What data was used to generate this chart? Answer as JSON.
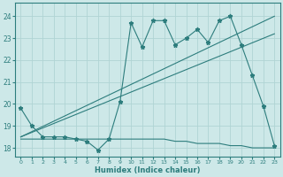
{
  "bg_color": "#cde8e8",
  "grid_color": "#b0d4d4",
  "line_color": "#2d7d7d",
  "xlabel": "Humidex (Indice chaleur)",
  "xlim": [
    -0.5,
    23.5
  ],
  "ylim": [
    17.6,
    24.6
  ],
  "yticks": [
    18,
    19,
    20,
    21,
    22,
    23,
    24
  ],
  "xticks": [
    0,
    1,
    2,
    3,
    4,
    5,
    6,
    7,
    8,
    9,
    10,
    11,
    12,
    13,
    14,
    15,
    16,
    17,
    18,
    19,
    20,
    21,
    22,
    23
  ],
  "series1_x": [
    0,
    1,
    2,
    3,
    4,
    5,
    6,
    7,
    8,
    9,
    10,
    11,
    12,
    13,
    14,
    15,
    16,
    17,
    18,
    19,
    20,
    21,
    22,
    23
  ],
  "series1_y": [
    19.8,
    19.0,
    18.5,
    18.5,
    18.5,
    18.4,
    18.3,
    17.9,
    18.4,
    20.1,
    23.7,
    22.6,
    23.8,
    23.8,
    22.7,
    23.0,
    23.4,
    22.8,
    23.8,
    24.0,
    22.7,
    21.3,
    19.9,
    18.1
  ],
  "series2_x": [
    0,
    1,
    2,
    3,
    4,
    5,
    6,
    7,
    8,
    9,
    10,
    11,
    12,
    13,
    14,
    15,
    16,
    17,
    18,
    19,
    20,
    21,
    22,
    23
  ],
  "series2_y": [
    18.4,
    18.4,
    18.4,
    18.4,
    18.4,
    18.4,
    18.4,
    18.4,
    18.4,
    18.4,
    18.4,
    18.4,
    18.4,
    18.4,
    18.3,
    18.3,
    18.2,
    18.2,
    18.2,
    18.1,
    18.1,
    18.0,
    18.0,
    18.0
  ],
  "series3_x": [
    0,
    23
  ],
  "series3_y": [
    18.5,
    23.2
  ],
  "series4_x": [
    0,
    23
  ],
  "series4_y": [
    18.5,
    24.0
  ]
}
